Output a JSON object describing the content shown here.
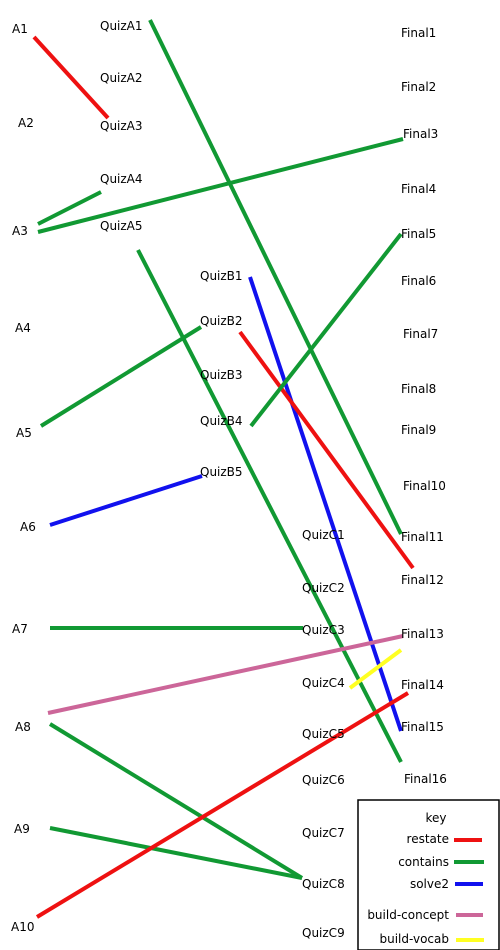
{
  "colors": {
    "restate": "#ee1111",
    "contains": "#119933",
    "solve2": "#1111ee",
    "build-concept": "#cc6699",
    "build-vocab": "#ffff22"
  },
  "nodes": {
    "A1": "A1",
    "A2": "A2",
    "A3": "A3",
    "A4": "A4",
    "A5": "A5",
    "A6": "A6",
    "A7": "A7",
    "A8": "A8",
    "A9": "A9",
    "A10": "A10",
    "QuizA1": "QuizA1",
    "QuizA2": "QuizA2",
    "QuizA3": "QuizA3",
    "QuizA4": "QuizA4",
    "QuizA5": "QuizA5",
    "QuizB1": "QuizB1",
    "QuizB2": "QuizB2",
    "QuizB3": "QuizB3",
    "QuizB4": "QuizB4",
    "QuizB5": "QuizB5",
    "QuizC1": "QuizC1",
    "QuizC2": "QuizC2",
    "QuizC3": "QuizC3",
    "QuizC4": "QuizC4",
    "QuizC5": "QuizC5",
    "QuizC6": "QuizC6",
    "QuizC7": "QuizC7",
    "QuizC8": "QuizC8",
    "QuizC9": "QuizC9",
    "Final1": "Final1",
    "Final2": "Final2",
    "Final3": "Final3",
    "Final4": "Final4",
    "Final5": "Final5",
    "Final6": "Final6",
    "Final7": "Final7",
    "Final8": "Final8",
    "Final9": "Final9",
    "Final10": "Final10",
    "Final11": "Final11",
    "Final12": "Final12",
    "Final13": "Final13",
    "Final14": "Final14",
    "Final15": "Final15",
    "Final16": "Final16"
  },
  "edges": [
    {
      "from": "A1",
      "to": "QuizA3",
      "type": "restate"
    },
    {
      "from": "QuizA1",
      "to": "Final11",
      "type": "contains"
    },
    {
      "from": "A3",
      "to": "QuizA4",
      "type": "contains"
    },
    {
      "from": "A3",
      "to": "Final3",
      "type": "contains"
    },
    {
      "from": "QuizA5",
      "to": "Final16",
      "type": "contains"
    },
    {
      "from": "QuizB1",
      "to": "Final15",
      "type": "solve2"
    },
    {
      "from": "QuizB2",
      "to": "Final12",
      "type": "restate"
    },
    {
      "from": "A5",
      "to": "QuizB2",
      "type": "contains"
    },
    {
      "from": "QuizB4",
      "to": "Final5",
      "type": "contains"
    },
    {
      "from": "A6",
      "to": "QuizB5",
      "type": "solve2"
    },
    {
      "from": "A7",
      "to": "QuizC3",
      "type": "contains"
    },
    {
      "from": "A8",
      "to": "Final13",
      "type": "build-concept"
    },
    {
      "from": "QuizC4",
      "to": "Final13",
      "type": "build-vocab"
    },
    {
      "from": "A8",
      "to": "QuizC8",
      "type": "contains"
    },
    {
      "from": "A9",
      "to": "QuizC8",
      "type": "contains"
    },
    {
      "from": "A10",
      "to": "Final14",
      "type": "restate"
    }
  ],
  "key": {
    "title": "key",
    "items": [
      {
        "label": "restate",
        "type": "restate"
      },
      {
        "label": "contains",
        "type": "contains"
      },
      {
        "label": "solve2",
        "type": "solve2"
      },
      {
        "label": "build-concept",
        "type": "build-concept"
      },
      {
        "label": "build-vocab",
        "type": "build-vocab"
      }
    ]
  }
}
